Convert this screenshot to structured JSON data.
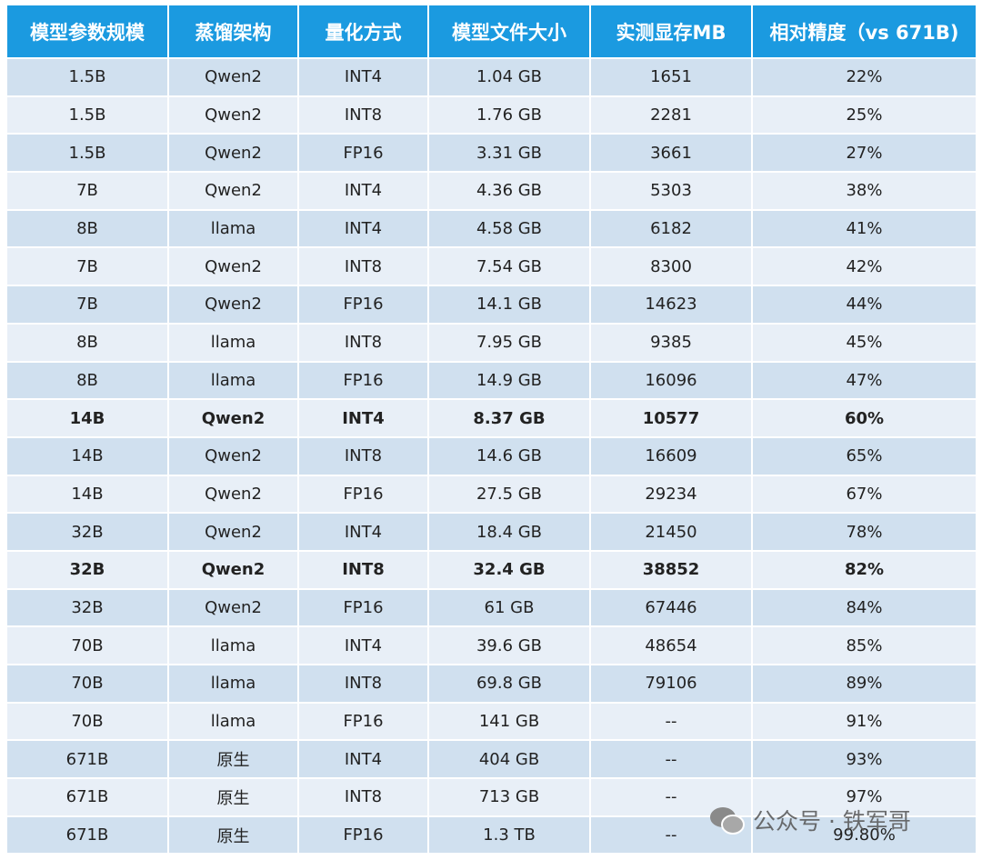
{
  "table": {
    "header": [
      "模型参数规模",
      "蒸馏架构",
      "量化方式",
      "模型文件大小",
      "实测显存MB",
      "相对精度（vs 671B)"
    ],
    "rows": [
      [
        "1.5B",
        "Qwen2",
        "INT4",
        "1.04 GB",
        "1651",
        "22%"
      ],
      [
        "1.5B",
        "Qwen2",
        "INT8",
        "1.76 GB",
        "2281",
        "25%"
      ],
      [
        "1.5B",
        "Qwen2",
        "FP16",
        "3.31 GB",
        "3661",
        "27%"
      ],
      [
        "7B",
        "Qwen2",
        "INT4",
        "4.36 GB",
        "5303",
        "38%"
      ],
      [
        "8B",
        "llama",
        "INT4",
        "4.58 GB",
        "6182",
        "41%"
      ],
      [
        "7B",
        "Qwen2",
        "INT8",
        "7.54 GB",
        "8300",
        "42%"
      ],
      [
        "7B",
        "Qwen2",
        "FP16",
        "14.1 GB",
        "14623",
        "44%"
      ],
      [
        "8B",
        "llama",
        "INT8",
        "7.95 GB",
        "9385",
        "45%"
      ],
      [
        "8B",
        "llama",
        "FP16",
        "14.9 GB",
        "16096",
        "47%"
      ],
      [
        "14B",
        "Qwen2",
        "INT4",
        "8.37 GB",
        "10577",
        "60%"
      ],
      [
        "14B",
        "Qwen2",
        "INT8",
        "14.6 GB",
        "16609",
        "65%"
      ],
      [
        "14B",
        "Qwen2",
        "FP16",
        "27.5 GB",
        "29234",
        "67%"
      ],
      [
        "32B",
        "Qwen2",
        "INT4",
        "18.4 GB",
        "21450",
        "78%"
      ],
      [
        "32B",
        "Qwen2",
        "INT8",
        "32.4 GB",
        "38852",
        "82%"
      ],
      [
        "32B",
        "Qwen2",
        "FP16",
        "61 GB",
        "67446",
        "84%"
      ],
      [
        "70B",
        "llama",
        "INT4",
        "39.6 GB",
        "48654",
        "85%"
      ],
      [
        "70B",
        "llama",
        "INT8",
        "69.8 GB",
        "79106",
        "89%"
      ],
      [
        "70B",
        "llama",
        "FP16",
        "141 GB",
        "--",
        "91%"
      ],
      [
        "671B",
        "原生",
        "INT4",
        "404 GB",
        "--",
        "93%"
      ],
      [
        "671B",
        "原生",
        "INT8",
        "713 GB",
        "--",
        "97%"
      ],
      [
        "671B",
        "原生",
        "FP16",
        "1.3 TB",
        "--",
        "99.80%"
      ]
    ],
    "bold_rows": [
      9,
      13
    ]
  },
  "watermark": "公众号 · 铁军哥"
}
